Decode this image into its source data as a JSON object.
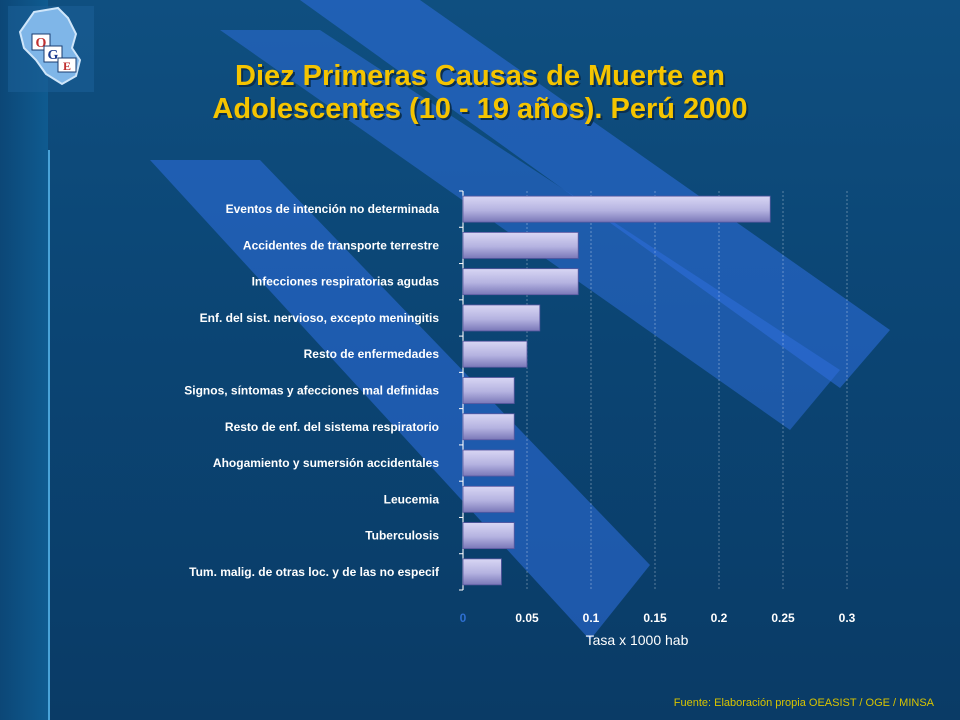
{
  "slide": {
    "title_line1": "Diez Primeras Causas de Muerte en",
    "title_line2": "Adolescentes (10 - 19 años). Perú 2000",
    "source": "Fuente: Elaboración propia OEASIST / OGE / MINSA",
    "logo": {
      "icon": "oge-peru-map-logo",
      "letters": "OGE"
    },
    "colors": {
      "background": "#0b4574",
      "title": "#f5c400",
      "bar": "#b4b2e0",
      "stripe": "#2f6fe0"
    }
  },
  "chart_data": {
    "type": "bar",
    "orientation": "horizontal",
    "categories": [
      "Eventos de intención no determinada",
      "Accidentes de transporte terrestre",
      "Infecciones respiratorias agudas",
      "Enf. del sist. nervioso, excepto meningitis",
      "Resto de enfermedades",
      "Signos, síntomas y afecciones mal definidas",
      "Resto de enf. del sistema respiratorio",
      "Ahogamiento y sumersión accidentales",
      "Leucemia",
      "Tuberculosis",
      "Tum. malig. de otras loc. y de las no especif"
    ],
    "values": [
      0.24,
      0.09,
      0.09,
      0.06,
      0.05,
      0.04,
      0.04,
      0.04,
      0.04,
      0.04,
      0.03
    ],
    "xlim": [
      0,
      0.3
    ],
    "xticks": [
      "0",
      "0.05",
      "0.1",
      "0.15",
      "0.2",
      "0.25",
      "0.3"
    ],
    "xlabel": "Tasa x 1000 hab",
    "grid": "vertical",
    "legend": "none"
  }
}
